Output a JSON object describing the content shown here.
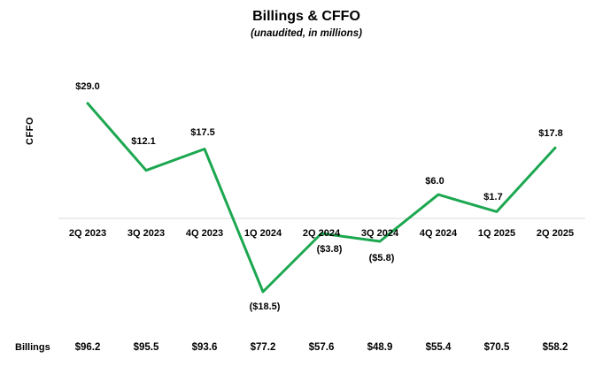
{
  "chart_data": {
    "type": "line",
    "title": "Billings & CFFO",
    "subtitle": "(unaudited, in millions)",
    "ylabel": "CFFO",
    "xlabel": "",
    "categories": [
      "2Q 2023",
      "3Q 2023",
      "4Q 2023",
      "1Q 2024",
      "2Q 2024",
      "3Q 2024",
      "4Q 2024",
      "1Q 2025",
      "2Q 2025"
    ],
    "series": [
      {
        "name": "CFFO",
        "display": "line",
        "values": [
          29.0,
          12.1,
          17.5,
          -18.5,
          -3.8,
          -5.8,
          6.0,
          1.7,
          17.8
        ],
        "labels": [
          "$29.0",
          "$12.1",
          "$17.5",
          "($18.5)",
          "($3.8)",
          "($5.8)",
          "$6.0",
          "$1.7",
          "$17.8"
        ]
      },
      {
        "name": "Billings",
        "display": "table-row",
        "values": [
          96.2,
          95.5,
          93.6,
          77.2,
          57.6,
          48.9,
          55.4,
          70.5,
          58.2
        ],
        "labels": [
          "$96.2",
          "$95.5",
          "$93.6",
          "$77.2",
          "$57.6",
          "$48.9",
          "$55.4",
          "$70.5",
          "$58.2"
        ]
      }
    ],
    "billings_row_label": "Billings",
    "line_color": "#1CA750",
    "axis_line_color": "#D9D9D9",
    "label_color": "#000000",
    "ylim": [
      -25,
      32
    ],
    "grid": false,
    "legend": "none",
    "zero_axis_shown": true
  }
}
